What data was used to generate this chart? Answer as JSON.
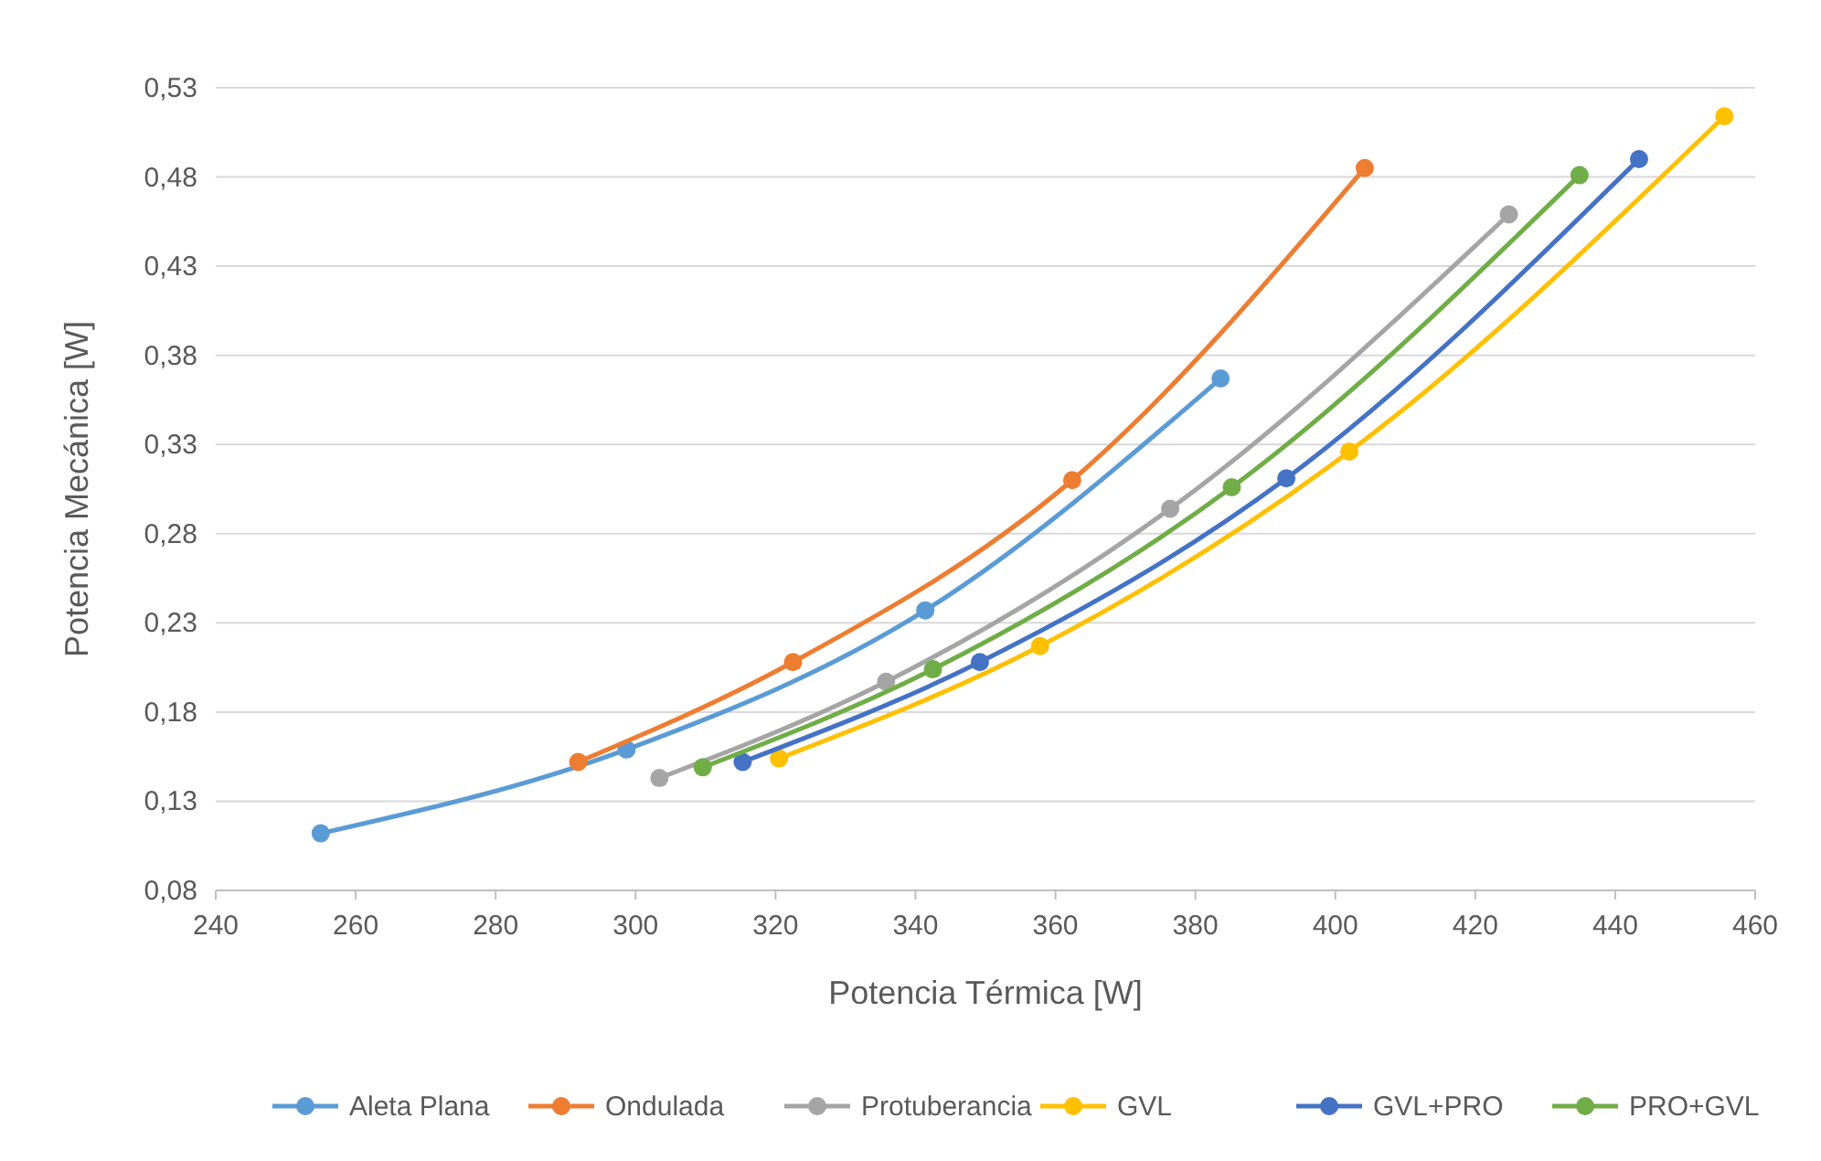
{
  "chart_data": {
    "type": "line",
    "xlabel": "Potencia Térmica [W]",
    "ylabel": "Potencia Mecánica [W]",
    "xlim": [
      240,
      460
    ],
    "xticks": [
      240,
      260,
      280,
      300,
      320,
      340,
      360,
      380,
      400,
      420,
      440,
      460
    ],
    "ylim": [
      0.08,
      0.53
    ],
    "yticks": [
      {
        "value": 0.08,
        "label": "0,08"
      },
      {
        "value": 0.13,
        "label": "0,13"
      },
      {
        "value": 0.18,
        "label": "0,18"
      },
      {
        "value": 0.23,
        "label": "0,23"
      },
      {
        "value": 0.28,
        "label": "0,28"
      },
      {
        "value": 0.33,
        "label": "0,33"
      },
      {
        "value": 0.38,
        "label": "0,38"
      },
      {
        "value": 0.43,
        "label": "0,43"
      },
      {
        "value": 0.48,
        "label": "0,48"
      },
      {
        "value": 0.53,
        "label": "0,53"
      }
    ],
    "grid": "y",
    "legend": "bottom",
    "marker": "circle",
    "series": [
      {
        "name": "Aleta Plana",
        "color": "#5b9bd5",
        "x": [
          255,
          298.7,
          341.4,
          383.6
        ],
        "values": [
          0.112,
          0.159,
          0.237,
          0.367
        ]
      },
      {
        "name": "Ondulada",
        "color": "#ed7d31",
        "x": [
          291.8,
          322.5,
          362.4,
          404.2
        ],
        "values": [
          0.152,
          0.208,
          0.31,
          0.485
        ]
      },
      {
        "name": "Protuberancia",
        "color": "#a5a5a5",
        "x": [
          303.4,
          335.8,
          376.4,
          424.8
        ],
        "values": [
          0.143,
          0.197,
          0.294,
          0.459
        ]
      },
      {
        "name": "GVL",
        "color": "#ffc000",
        "x": [
          320.5,
          357.8,
          402,
          455.6
        ],
        "values": [
          0.154,
          0.217,
          0.326,
          0.514
        ]
      },
      {
        "name": "GVL+PRO",
        "color": "#4472c4",
        "x": [
          315.3,
          349.2,
          393,
          443.4
        ],
        "values": [
          0.152,
          0.208,
          0.311,
          0.49
        ]
      },
      {
        "name": "PRO+GVL",
        "color": "#70ad47",
        "x": [
          309.6,
          342.5,
          385.2,
          434.9
        ],
        "values": [
          0.149,
          0.204,
          0.306,
          0.481
        ]
      }
    ]
  }
}
